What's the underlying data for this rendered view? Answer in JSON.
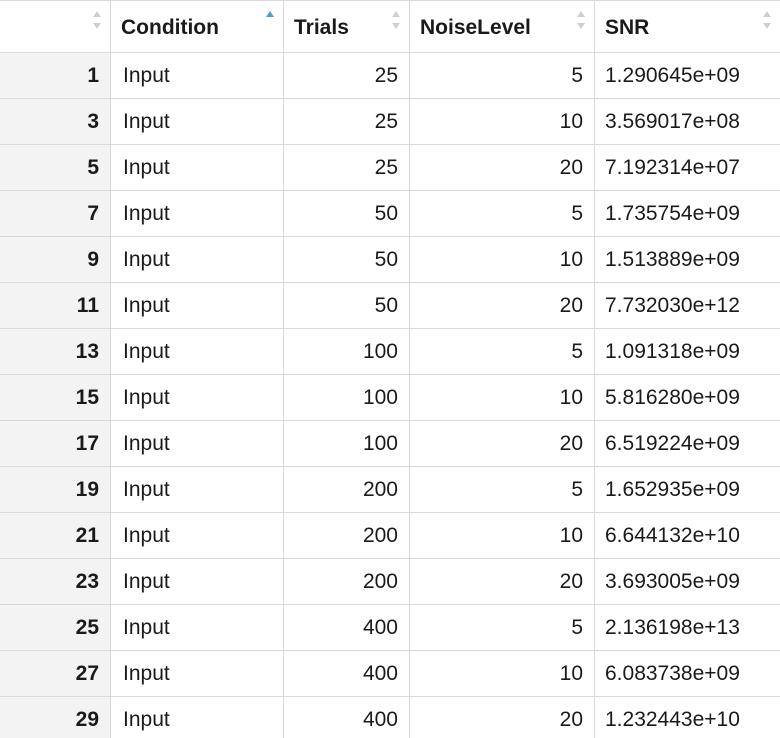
{
  "colors": {
    "grid_line": "#d9d9d9",
    "row_number_bg": "#f3f3f3",
    "sort_active": "#4a9be0",
    "sort_inactive": "#cfcfcf"
  },
  "columns": [
    {
      "key": "rownum",
      "label": "",
      "sort_state": "none"
    },
    {
      "key": "Condition",
      "label": "Condition",
      "sort_state": "ascending"
    },
    {
      "key": "Trials",
      "label": "Trials",
      "sort_state": "none"
    },
    {
      "key": "NoiseLevel",
      "label": "NoiseLevel",
      "sort_state": "none"
    },
    {
      "key": "SNR",
      "label": "SNR",
      "sort_state": "none"
    }
  ],
  "rows": [
    {
      "rownum": "1",
      "Condition": "Input",
      "Trials": "25",
      "NoiseLevel": "5",
      "SNR": "1.290645e+09"
    },
    {
      "rownum": "3",
      "Condition": "Input",
      "Trials": "25",
      "NoiseLevel": "10",
      "SNR": "3.569017e+08"
    },
    {
      "rownum": "5",
      "Condition": "Input",
      "Trials": "25",
      "NoiseLevel": "20",
      "SNR": "7.192314e+07"
    },
    {
      "rownum": "7",
      "Condition": "Input",
      "Trials": "50",
      "NoiseLevel": "5",
      "SNR": "1.735754e+09"
    },
    {
      "rownum": "9",
      "Condition": "Input",
      "Trials": "50",
      "NoiseLevel": "10",
      "SNR": "1.513889e+09"
    },
    {
      "rownum": "11",
      "Condition": "Input",
      "Trials": "50",
      "NoiseLevel": "20",
      "SNR": "7.732030e+12"
    },
    {
      "rownum": "13",
      "Condition": "Input",
      "Trials": "100",
      "NoiseLevel": "5",
      "SNR": "1.091318e+09"
    },
    {
      "rownum": "15",
      "Condition": "Input",
      "Trials": "100",
      "NoiseLevel": "10",
      "SNR": "5.816280e+09"
    },
    {
      "rownum": "17",
      "Condition": "Input",
      "Trials": "100",
      "NoiseLevel": "20",
      "SNR": "6.519224e+09"
    },
    {
      "rownum": "19",
      "Condition": "Input",
      "Trials": "200",
      "NoiseLevel": "5",
      "SNR": "1.652935e+09"
    },
    {
      "rownum": "21",
      "Condition": "Input",
      "Trials": "200",
      "NoiseLevel": "10",
      "SNR": "6.644132e+10"
    },
    {
      "rownum": "23",
      "Condition": "Input",
      "Trials": "200",
      "NoiseLevel": "20",
      "SNR": "3.693005e+09"
    },
    {
      "rownum": "25",
      "Condition": "Input",
      "Trials": "400",
      "NoiseLevel": "5",
      "SNR": "2.136198e+13"
    },
    {
      "rownum": "27",
      "Condition": "Input",
      "Trials": "400",
      "NoiseLevel": "10",
      "SNR": "6.083738e+09"
    },
    {
      "rownum": "29",
      "Condition": "Input",
      "Trials": "400",
      "NoiseLevel": "20",
      "SNR": "1.232443e+10"
    }
  ]
}
